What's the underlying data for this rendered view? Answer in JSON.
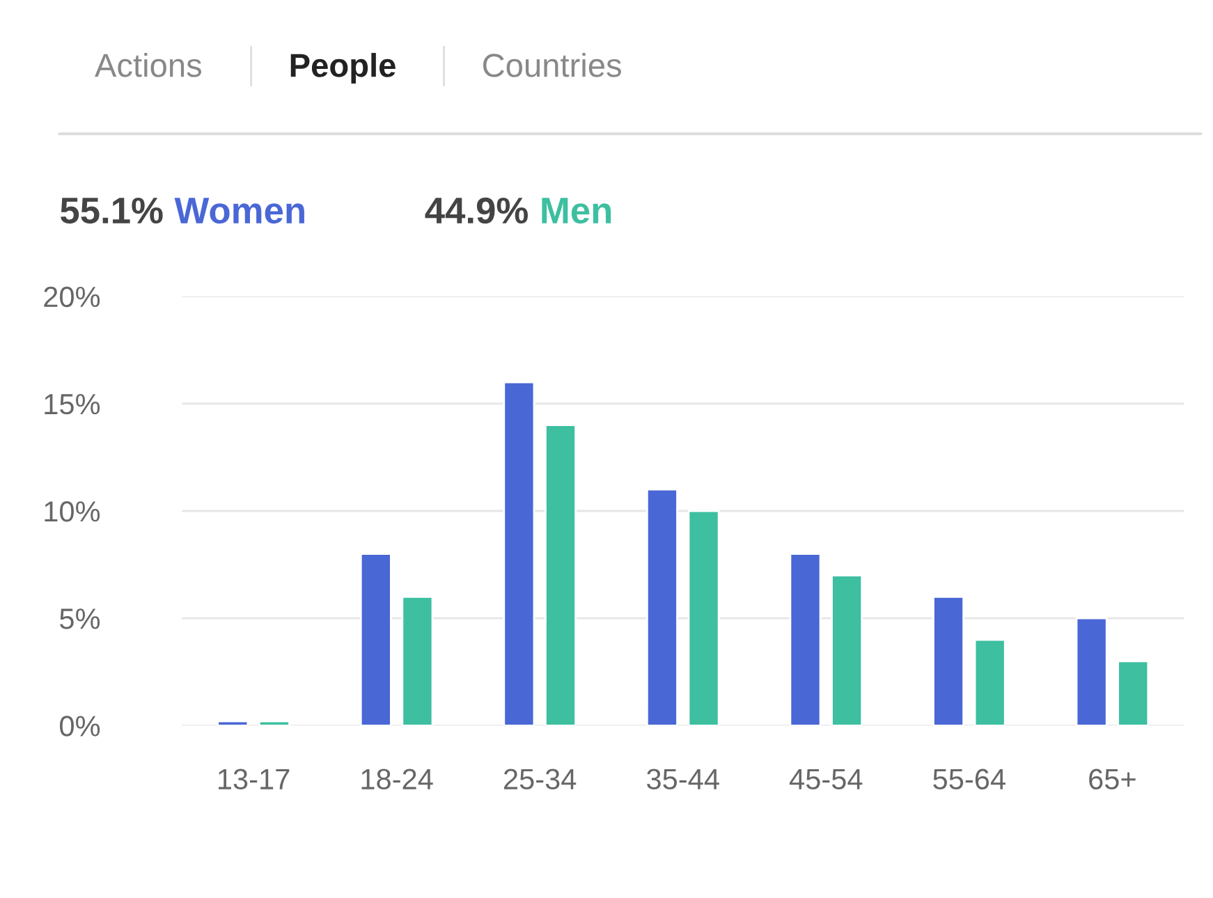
{
  "chart_data": {
    "type": "bar",
    "categories": [
      "13-17",
      "18-24",
      "25-34",
      "35-44",
      "45-54",
      "55-64",
      "65+"
    ],
    "series": [
      {
        "name": "Women",
        "color": "#4a67d6",
        "values": [
          0.2,
          8,
          16,
          11,
          8,
          6,
          5
        ]
      },
      {
        "name": "Men",
        "color": "#3dbfa0",
        "values": [
          0.2,
          6,
          14,
          10,
          7,
          4,
          3
        ]
      }
    ],
    "ylim": [
      0,
      20
    ],
    "yticks": [
      {
        "value": 0,
        "label": "0%"
      },
      {
        "value": 5,
        "label": "5%"
      },
      {
        "value": 10,
        "label": "10%"
      },
      {
        "value": 15,
        "label": "15%"
      },
      {
        "value": 20,
        "label": "20%"
      }
    ],
    "grid": "y",
    "legend": "top left",
    "annotations": [
      "Actions",
      "People",
      "Countries",
      "55.1%",
      "44.9%"
    ]
  }
}
